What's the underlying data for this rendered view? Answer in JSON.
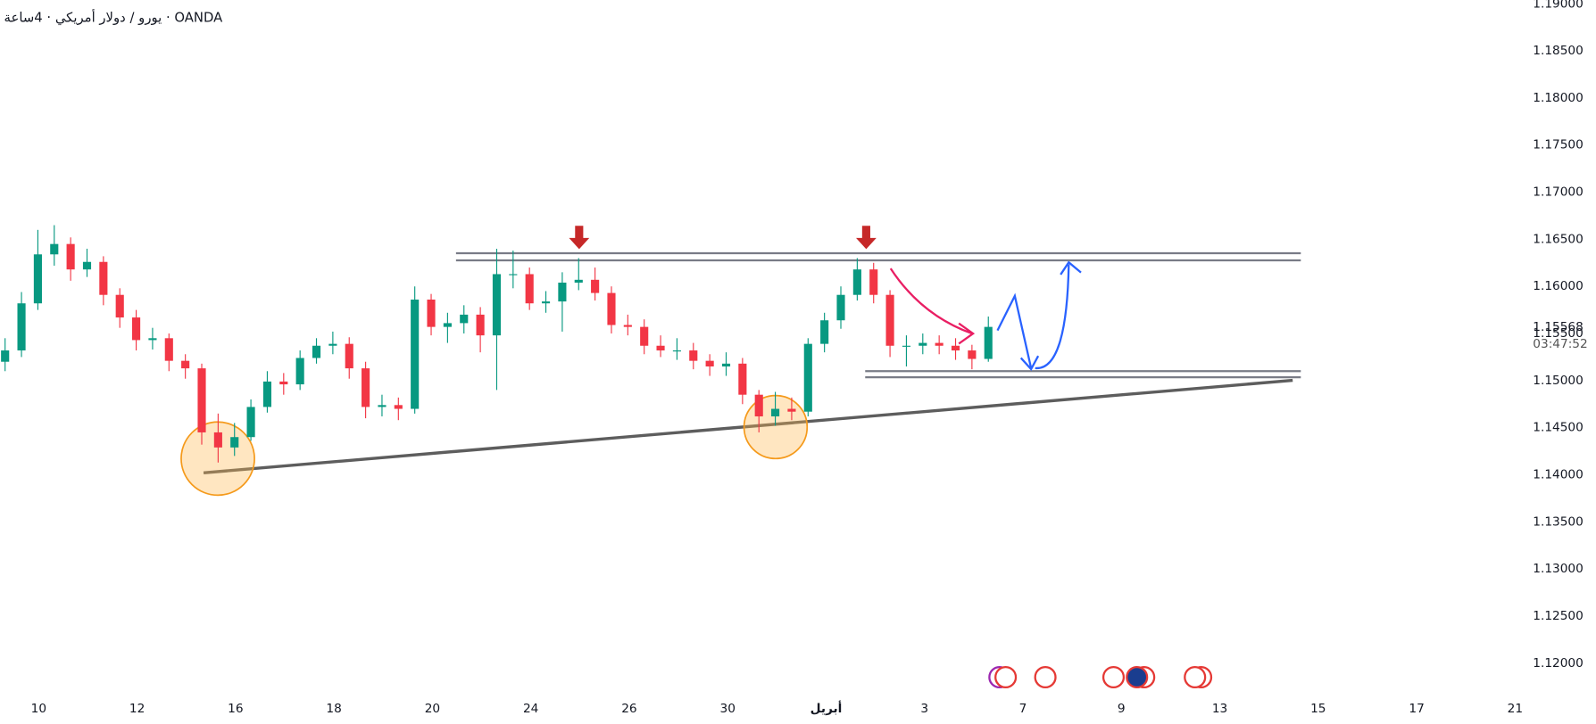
{
  "chart_data": {
    "type": "candlestick",
    "title": "يورو / دولار أمريكي · 4ساعة · OANDA",
    "up_color": "#089981",
    "down_color": "#f23645",
    "open": [
      1.152,
      1.1532,
      1.1582,
      1.1634,
      1.1645,
      1.1618,
      1.1626,
      1.1591,
      1.1567,
      1.1543,
      1.1545,
      1.1521,
      1.1513,
      1.1445,
      1.1429,
      1.144,
      1.1472,
      1.1499,
      1.1496,
      1.1524,
      1.1537,
      1.1539,
      1.1513,
      1.1472,
      1.1474,
      1.147,
      1.1586,
      1.1557,
      1.1561,
      1.157,
      1.1548,
      1.1613,
      1.1613,
      1.1582,
      1.1584,
      1.1604,
      1.1607,
      1.1593,
      1.1559,
      1.1557,
      1.1537,
      1.1532,
      1.1532,
      1.1521,
      1.1515,
      1.1518,
      1.1485,
      1.1462,
      1.147,
      1.1467,
      1.1539,
      1.1564,
      1.1591,
      1.1618,
      1.1591,
      1.1537,
      1.1537,
      1.154,
      1.1537,
      1.1532,
      1.1523
    ],
    "high": [
      1.1545,
      1.1594,
      1.166,
      1.1665,
      1.1652,
      1.164,
      1.1632,
      1.1598,
      1.1575,
      1.1556,
      1.155,
      1.1528,
      1.1518,
      1.1465,
      1.1455,
      1.148,
      1.151,
      1.1508,
      1.1532,
      1.1545,
      1.1552,
      1.1546,
      1.152,
      1.1485,
      1.1482,
      1.16,
      1.1592,
      1.1572,
      1.158,
      1.1578,
      1.164,
      1.1638,
      1.162,
      1.1595,
      1.1615,
      1.163,
      1.162,
      1.16,
      1.157,
      1.1565,
      1.1548,
      1.1545,
      1.154,
      1.1528,
      1.153,
      1.1524,
      1.149,
      1.1488,
      1.1482,
      1.1545,
      1.1572,
      1.16,
      1.163,
      1.1625,
      1.1596,
      1.1548,
      1.155,
      1.1548,
      1.1545,
      1.1538,
      1.1568
    ],
    "low": [
      1.151,
      1.1525,
      1.1575,
      1.1622,
      1.1606,
      1.161,
      1.158,
      1.1556,
      1.1532,
      1.1533,
      1.151,
      1.1502,
      1.1432,
      1.1413,
      1.142,
      1.1436,
      1.1466,
      1.1485,
      1.149,
      1.1518,
      1.1528,
      1.1502,
      1.146,
      1.1462,
      1.1458,
      1.1465,
      1.1548,
      1.154,
      1.155,
      1.153,
      1.149,
      1.1598,
      1.1575,
      1.1572,
      1.1552,
      1.1596,
      1.1585,
      1.155,
      1.1548,
      1.1528,
      1.1525,
      1.1522,
      1.1512,
      1.1505,
      1.1505,
      1.1475,
      1.1445,
      1.1452,
      1.1458,
      1.1462,
      1.153,
      1.1555,
      1.1585,
      1.1582,
      1.1525,
      1.1515,
      1.1528,
      1.1528,
      1.1522,
      1.1512,
      1.152
    ],
    "close": [
      1.1532,
      1.1582,
      1.1634,
      1.1645,
      1.1618,
      1.1626,
      1.1591,
      1.1567,
      1.1543,
      1.1545,
      1.1521,
      1.1513,
      1.1445,
      1.1429,
      1.144,
      1.1472,
      1.1499,
      1.1496,
      1.1524,
      1.1537,
      1.1539,
      1.1513,
      1.1472,
      1.1474,
      1.147,
      1.1586,
      1.1557,
      1.1561,
      1.157,
      1.1548,
      1.1613,
      1.1613,
      1.1582,
      1.1584,
      1.1604,
      1.1607,
      1.1593,
      1.1559,
      1.1557,
      1.1537,
      1.1532,
      1.1532,
      1.1521,
      1.1515,
      1.1518,
      1.1485,
      1.1462,
      1.147,
      1.1467,
      1.1539,
      1.1564,
      1.1591,
      1.1618,
      1.1591,
      1.1537,
      1.1537,
      1.154,
      1.1537,
      1.1532,
      1.1523,
      1.1557
    ],
    "x_labels": [
      "10",
      "12",
      "16",
      "18",
      "20",
      "24",
      "26",
      "30",
      "أبريل",
      "3",
      "7",
      "9",
      "13",
      "15",
      "17",
      "21"
    ],
    "ylim": [
      1.117,
      1.1904
    ],
    "yticks": [
      {
        "value": 1.12,
        "label": "1.12000"
      },
      {
        "value": 1.125,
        "label": "1.12500"
      },
      {
        "value": 1.13,
        "label": "1.13000"
      },
      {
        "value": 1.135,
        "label": "1.13500"
      },
      {
        "value": 1.14,
        "label": "1.14000"
      },
      {
        "value": 1.145,
        "label": "1.14500"
      },
      {
        "value": 1.15,
        "label": "1.15000"
      },
      {
        "value": 1.155,
        "label": "1.15500"
      },
      {
        "value": 1.16,
        "label": "1.16000"
      },
      {
        "value": 1.165,
        "label": "1.16500"
      },
      {
        "value": 1.17,
        "label": "1.17000"
      },
      {
        "value": 1.175,
        "label": "1.17500"
      },
      {
        "value": 1.18,
        "label": "1.18000"
      },
      {
        "value": 1.185,
        "label": "1.18500"
      },
      {
        "value": 1.19,
        "label": "1.19000"
      }
    ],
    "last_price": {
      "value": 1.15568,
      "label": "1.15568"
    },
    "countdown": "03:47:52"
  }
}
